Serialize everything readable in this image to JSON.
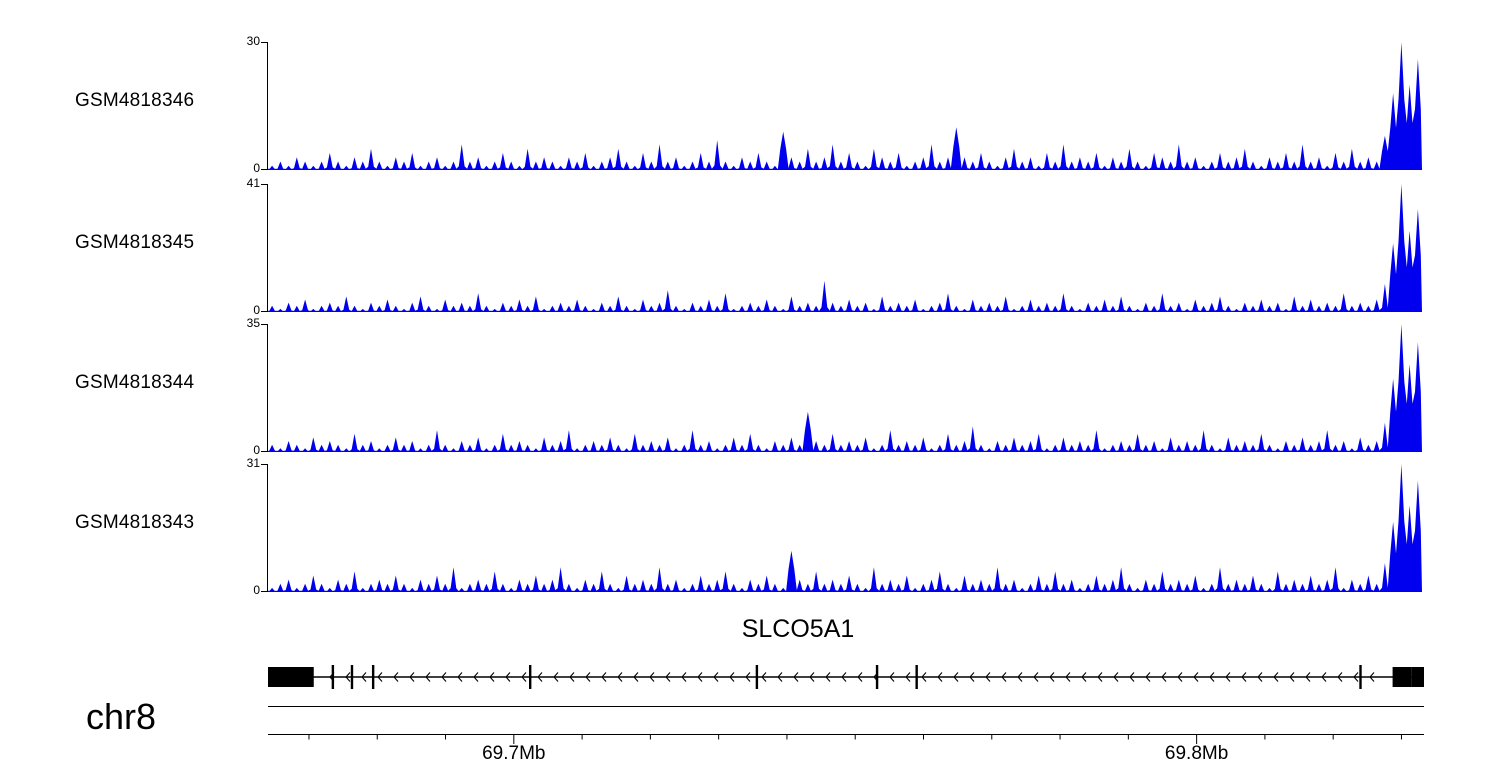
{
  "tracks": [
    {
      "label": "GSM4818346",
      "ymax": 30,
      "ymin": 0
    },
    {
      "label": "GSM4818345",
      "ymax": 41,
      "ymin": 0
    },
    {
      "label": "GSM4818344",
      "ymax": 35,
      "ymin": 0
    },
    {
      "label": "GSM4818343",
      "ymax": 31,
      "ymin": 0
    }
  ],
  "gene_track": {
    "gene_name": "SLCO5A1",
    "strand": "-"
  },
  "axis": {
    "chromosome": "chr8",
    "ticks": [
      {
        "mb": 69.7,
        "label": "69.7Mb"
      },
      {
        "mb": 69.8,
        "label": "69.8Mb"
      }
    ]
  },
  "chart_data": {
    "type": "area",
    "title": "",
    "color": "#0000ee",
    "x_axis": {
      "chromosome": "chr8",
      "unit": "Mb",
      "start_mb": 69.664,
      "end_mb": 69.8333,
      "tick_positions_mb": [
        69.7,
        69.8
      ],
      "tick_labels": [
        "69.7Mb",
        "69.8Mb"
      ]
    },
    "series": [
      {
        "name": "GSM4818346",
        "ylim": [
          0,
          30
        ],
        "values": [
          1,
          2,
          1,
          3,
          2,
          1,
          2,
          4,
          2,
          1,
          3,
          2,
          5,
          2,
          1,
          3,
          2,
          4,
          1,
          2,
          3,
          1,
          2,
          6,
          2,
          3,
          1,
          2,
          4,
          2,
          1,
          5,
          2,
          3,
          2,
          1,
          3,
          2,
          4,
          1,
          2,
          3,
          5,
          2,
          1,
          4,
          2,
          6,
          2,
          3,
          1,
          2,
          4,
          2,
          7,
          2,
          1,
          3,
          2,
          4,
          2,
          1,
          9,
          3,
          2,
          5,
          2,
          3,
          6,
          2,
          4,
          2,
          1,
          5,
          3,
          2,
          4,
          1,
          2,
          3,
          6,
          2,
          3,
          10,
          3,
          2,
          4,
          2,
          1,
          3,
          5,
          2,
          3,
          1,
          4,
          2,
          6,
          2,
          3,
          2,
          4,
          1,
          3,
          2,
          5,
          2,
          1,
          4,
          3,
          2,
          6,
          2,
          3,
          1,
          2,
          4,
          2,
          3,
          5,
          2,
          1,
          3,
          2,
          4,
          2,
          6,
          2,
          3,
          1,
          4,
          2,
          5,
          2,
          3,
          2,
          8,
          18,
          30,
          20,
          26
        ]
      },
      {
        "name": "GSM4818345",
        "ylim": [
          0,
          41
        ],
        "values": [
          2,
          1,
          3,
          2,
          4,
          1,
          2,
          3,
          2,
          5,
          2,
          1,
          3,
          2,
          4,
          2,
          1,
          3,
          5,
          2,
          1,
          4,
          2,
          3,
          2,
          6,
          2,
          1,
          3,
          2,
          4,
          2,
          5,
          1,
          2,
          3,
          2,
          4,
          2,
          1,
          3,
          2,
          5,
          2,
          1,
          4,
          2,
          3,
          7,
          2,
          1,
          3,
          2,
          4,
          2,
          6,
          1,
          2,
          3,
          2,
          4,
          2,
          1,
          5,
          2,
          3,
          2,
          10,
          3,
          2,
          4,
          2,
          3,
          1,
          5,
          2,
          3,
          2,
          4,
          1,
          2,
          3,
          6,
          2,
          1,
          4,
          2,
          3,
          2,
          5,
          1,
          2,
          4,
          2,
          3,
          2,
          6,
          2,
          1,
          3,
          2,
          4,
          2,
          5,
          2,
          1,
          3,
          2,
          6,
          2,
          3,
          1,
          4,
          2,
          3,
          5,
          2,
          1,
          3,
          2,
          4,
          2,
          3,
          1,
          5,
          2,
          4,
          2,
          3,
          2,
          6,
          2,
          3,
          2,
          4,
          9,
          22,
          41,
          26,
          33
        ]
      },
      {
        "name": "GSM4818344",
        "ylim": [
          0,
          35
        ],
        "values": [
          2,
          1,
          3,
          2,
          1,
          4,
          2,
          3,
          2,
          1,
          5,
          2,
          3,
          1,
          2,
          4,
          2,
          3,
          1,
          2,
          6,
          2,
          1,
          3,
          2,
          4,
          1,
          2,
          5,
          2,
          3,
          2,
          1,
          4,
          2,
          3,
          6,
          1,
          2,
          3,
          2,
          4,
          2,
          1,
          5,
          2,
          3,
          2,
          4,
          1,
          2,
          6,
          2,
          3,
          1,
          2,
          4,
          2,
          5,
          2,
          1,
          3,
          2,
          4,
          2,
          11,
          3,
          2,
          5,
          2,
          3,
          2,
          4,
          1,
          2,
          6,
          2,
          3,
          2,
          4,
          1,
          2,
          5,
          2,
          3,
          7,
          2,
          1,
          3,
          2,
          4,
          2,
          3,
          5,
          1,
          2,
          4,
          2,
          3,
          2,
          6,
          1,
          2,
          3,
          2,
          5,
          2,
          3,
          1,
          4,
          2,
          3,
          2,
          6,
          2,
          1,
          4,
          2,
          3,
          2,
          5,
          2,
          1,
          3,
          2,
          4,
          2,
          3,
          6,
          2,
          3,
          1,
          4,
          2,
          3,
          8,
          20,
          35,
          24,
          30
        ]
      },
      {
        "name": "GSM4818343",
        "ylim": [
          0,
          31
        ],
        "values": [
          1,
          2,
          3,
          1,
          2,
          4,
          2,
          1,
          3,
          2,
          5,
          1,
          2,
          3,
          2,
          4,
          2,
          1,
          3,
          2,
          4,
          2,
          6,
          1,
          2,
          3,
          2,
          5,
          2,
          1,
          3,
          2,
          4,
          2,
          3,
          6,
          2,
          1,
          3,
          2,
          5,
          2,
          1,
          4,
          2,
          3,
          2,
          6,
          2,
          3,
          1,
          2,
          4,
          2,
          3,
          5,
          2,
          1,
          3,
          2,
          4,
          2,
          1,
          10,
          3,
          2,
          5,
          2,
          3,
          2,
          4,
          2,
          1,
          6,
          2,
          3,
          2,
          4,
          1,
          2,
          3,
          5,
          2,
          1,
          4,
          2,
          3,
          2,
          6,
          2,
          3,
          1,
          2,
          4,
          2,
          5,
          2,
          3,
          1,
          2,
          4,
          2,
          3,
          6,
          2,
          1,
          3,
          2,
          5,
          2,
          3,
          2,
          4,
          1,
          2,
          6,
          2,
          3,
          2,
          4,
          2,
          1,
          5,
          2,
          3,
          2,
          4,
          2,
          3,
          6,
          1,
          3,
          2,
          4,
          2,
          7,
          17,
          31,
          21,
          27
        ]
      }
    ],
    "annotation": {
      "gene": "SLCO5A1",
      "strand": "-",
      "gene_span_mb": [
        69.664,
        69.8333
      ],
      "thick_exons_mb": [
        [
          69.664,
          69.6707
        ],
        [
          69.8287,
          69.8315
        ],
        [
          69.8315,
          69.8333
        ]
      ],
      "thin_exons_mb": [
        69.6735,
        69.6763,
        69.6794,
        69.7024,
        69.7356,
        69.7532,
        69.759,
        69.824
      ]
    }
  }
}
